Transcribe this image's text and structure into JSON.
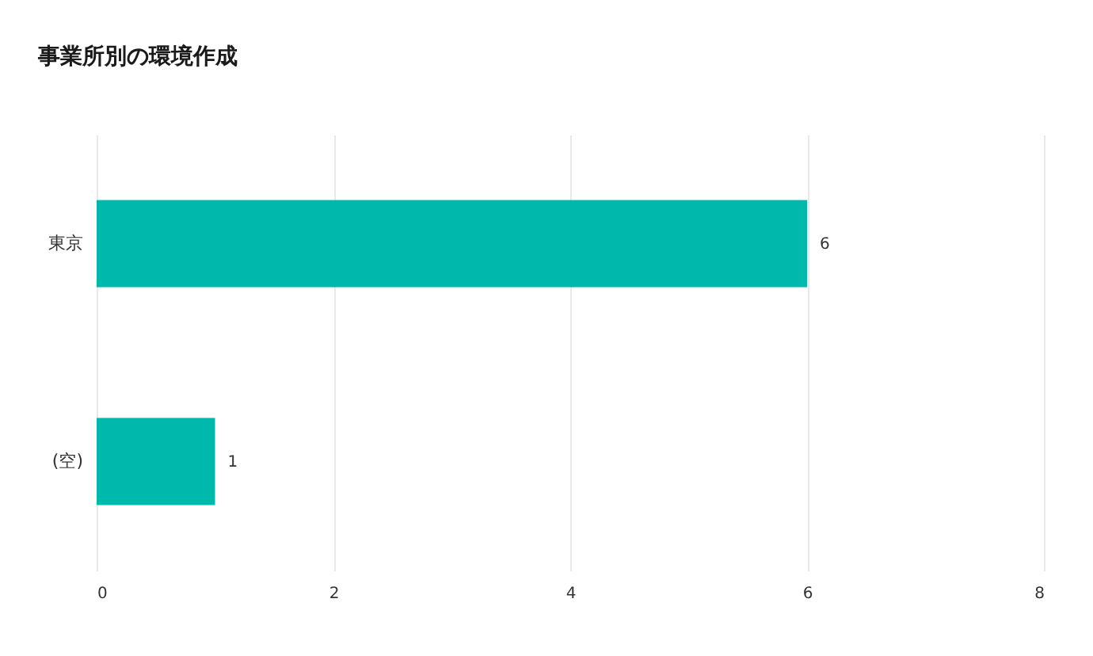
{
  "chart_data": {
    "type": "bar",
    "orientation": "horizontal",
    "title": "事業所別の環境作成",
    "categories": [
      "東京",
      "(空)"
    ],
    "values": [
      6,
      1
    ],
    "color": "#00b9ad",
    "xlim": [
      0,
      8
    ],
    "xticks": [
      0,
      2,
      4,
      6,
      8
    ],
    "grid": "x",
    "data_labels": true
  }
}
